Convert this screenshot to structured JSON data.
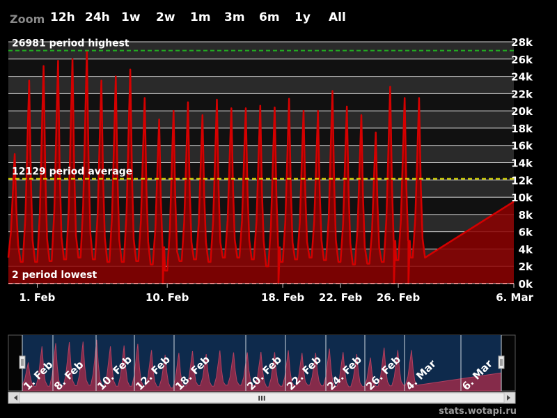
{
  "zoom": {
    "label": "Zoom",
    "buttons": [
      "12h",
      "24h",
      "1w",
      "2w",
      "1m",
      "3m",
      "6m",
      "1y",
      "All"
    ]
  },
  "colors": {
    "series": "#d40000",
    "fill": "#8c0000",
    "highest_line": "#22aa22",
    "average_line": "#e6e600",
    "lowest_line": "#ff4040",
    "navigator_bg": "#0e2a4c",
    "navigator_series": "#9a2c4a"
  },
  "chart_data": {
    "type": "area",
    "x_min": "2014-01-30",
    "x_max": "2014-03-06",
    "ylim": [
      0,
      28000
    ],
    "y_tick_labels": [
      "0k",
      "2k",
      "4k",
      "6k",
      "8k",
      "10k",
      "12k",
      "14k",
      "16k",
      "18k",
      "20k",
      "22k",
      "24k",
      "26k",
      "28k"
    ],
    "x_tick_labels": [
      {
        "label": "1. Feb",
        "date": "2014-02-01"
      },
      {
        "label": "10. Feb",
        "date": "2014-02-10"
      },
      {
        "label": "18. Feb",
        "date": "2014-02-18"
      },
      {
        "label": "22. Feb",
        "date": "2014-02-22"
      },
      {
        "label": "26. Feb",
        "date": "2014-02-26"
      },
      {
        "label": "6. Mar",
        "date": "2014-03-06"
      }
    ],
    "daily_peaks": [
      {
        "date": "2014-01-30",
        "peak": 15000,
        "trough": 3000
      },
      {
        "date": "2014-01-31",
        "peak": 23500,
        "trough": 2500
      },
      {
        "date": "2014-02-01",
        "peak": 25200,
        "trough": 2500
      },
      {
        "date": "2014-02-02",
        "peak": 25800,
        "trough": 2600
      },
      {
        "date": "2014-02-03",
        "peak": 26000,
        "trough": 2800
      },
      {
        "date": "2014-02-04",
        "peak": 26981,
        "trough": 3000
      },
      {
        "date": "2014-02-05",
        "peak": 23500,
        "trough": 2800
      },
      {
        "date": "2014-02-06",
        "peak": 24000,
        "trough": 2500
      },
      {
        "date": "2014-02-07",
        "peak": 24800,
        "trough": 2500
      },
      {
        "date": "2014-02-08",
        "peak": 21500,
        "trough": 2600
      },
      {
        "date": "2014-02-09",
        "peak": 19000,
        "trough": 2200
      },
      {
        "date": "2014-02-10",
        "peak": 20000,
        "trough": 1500
      },
      {
        "date": "2014-02-11",
        "peak": 21000,
        "trough": 2600
      },
      {
        "date": "2014-02-12",
        "peak": 19500,
        "trough": 2800
      },
      {
        "date": "2014-02-13",
        "peak": 21300,
        "trough": 2500
      },
      {
        "date": "2014-02-14",
        "peak": 20300,
        "trough": 3000
      },
      {
        "date": "2014-02-15",
        "peak": 20300,
        "trough": 3000
      },
      {
        "date": "2014-02-16",
        "peak": 20600,
        "trough": 2800
      },
      {
        "date": "2014-02-17",
        "peak": 20400,
        "trough": 2000
      },
      {
        "date": "2014-02-18",
        "peak": 21400,
        "trough": 2500
      },
      {
        "date": "2014-02-19",
        "peak": 20000,
        "trough": 2800
      },
      {
        "date": "2014-02-20",
        "peak": 20000,
        "trough": 3000
      },
      {
        "date": "2014-02-21",
        "peak": 22300,
        "trough": 2700
      },
      {
        "date": "2014-02-22",
        "peak": 20500,
        "trough": 2500
      },
      {
        "date": "2014-02-23",
        "peak": 19500,
        "trough": 2200
      },
      {
        "date": "2014-02-24",
        "peak": 17500,
        "trough": 2300
      },
      {
        "date": "2014-02-25",
        "peak": 22800,
        "trough": 2500
      },
      {
        "date": "2014-02-26",
        "peak": 21500,
        "trough": 2700
      },
      {
        "date": "2014-02-27",
        "peak": 21500,
        "trough": 3000
      }
    ],
    "dips_to_zero": [
      "2014-02-09",
      "2014-02-17",
      "2014-02-25",
      "2014-02-26"
    ],
    "reference_lines": [
      {
        "label": "26981 period highest",
        "value": 26981
      },
      {
        "label": "12129 period average",
        "value": 12129
      },
      {
        "label": "2 period lowest",
        "value": 2
      }
    ]
  },
  "navigator": {
    "x_labels": [
      "1. Feb",
      "8. Feb",
      "10. Feb",
      "12. Feb",
      "18. Feb",
      "20. Feb",
      "22. Feb",
      "24. Feb",
      "26. Feb",
      "4. Mar",
      "6. Mar"
    ],
    "scrollbar_grip": "III"
  },
  "credit": "stats.wotapi.ru"
}
